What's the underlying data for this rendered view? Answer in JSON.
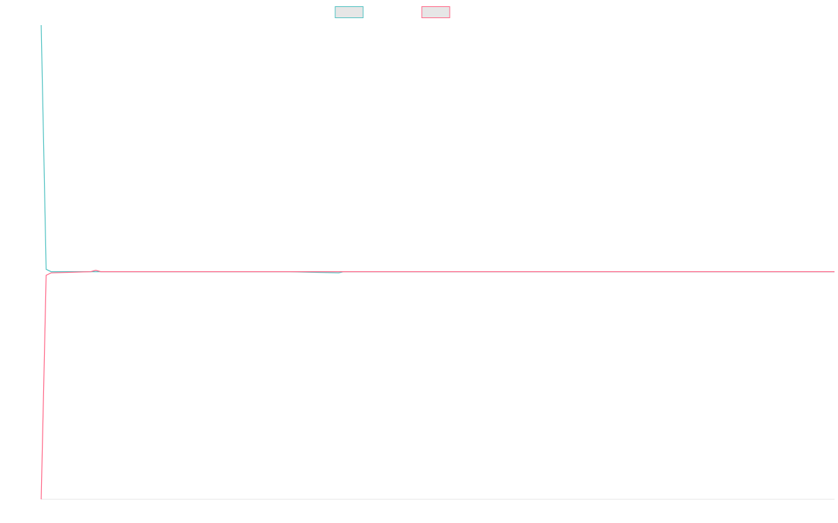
{
  "chart_data": {
    "type": "line",
    "xlim": [
      0,
      160
    ],
    "ylim": [
      -1,
      1
    ],
    "legend": "top",
    "series": [
      {
        "color": "#4bc0c0",
        "x": [
          0,
          1,
          2,
          11,
          50,
          60,
          61,
          70,
          160
        ],
        "values": [
          1.0,
          -0.03,
          -0.04,
          -0.04,
          -0.04,
          -0.045,
          -0.04,
          -0.04,
          -0.04
        ]
      },
      {
        "color": "#ff6384",
        "x": [
          0,
          1,
          2,
          10,
          11,
          12,
          60,
          160
        ],
        "values": [
          -1.0,
          -0.055,
          -0.045,
          -0.04,
          -0.034,
          -0.04,
          -0.04,
          -0.04
        ]
      }
    ]
  }
}
